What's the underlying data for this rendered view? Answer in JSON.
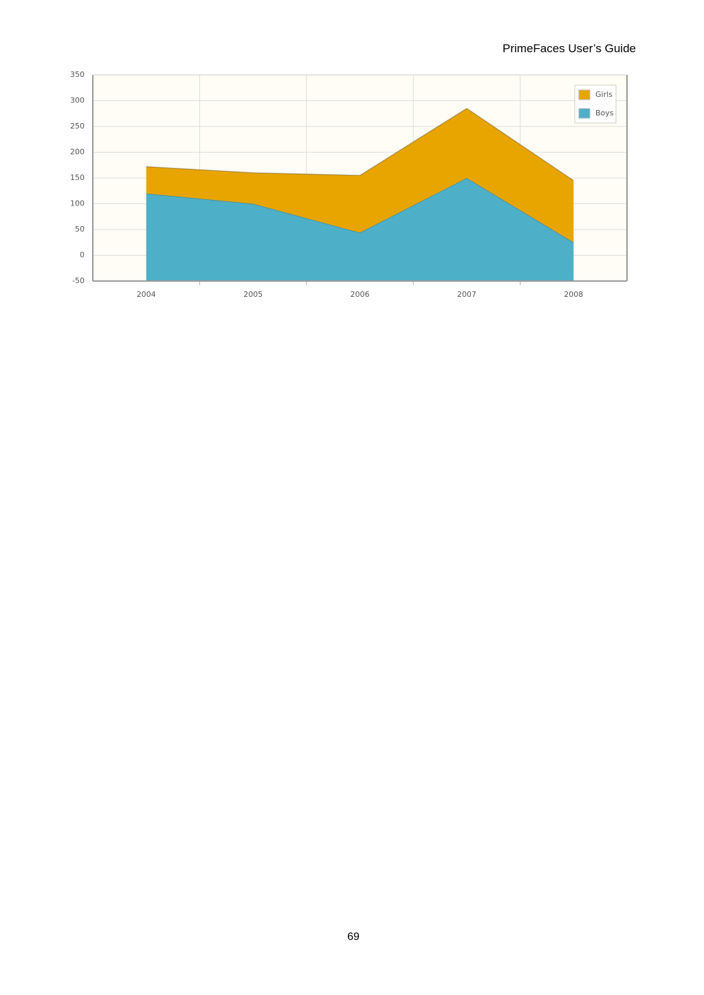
{
  "header": "PrimeFaces User’s Guide",
  "chart_data": {
    "type": "area",
    "stacked": true,
    "categories": [
      "2004",
      "2005",
      "2006",
      "2007",
      "2008"
    ],
    "series": [
      {
        "name": "Boys",
        "color": "#4eafc8",
        "values": [
          120,
          100,
          44,
          150,
          25
        ]
      },
      {
        "name": "Girls",
        "color": "#e8a500",
        "values": [
          52,
          60,
          111,
          135,
          120
        ]
      }
    ],
    "ylim": [
      -50,
      350
    ],
    "yticks": [
      -50,
      0,
      50,
      100,
      150,
      200,
      250,
      300,
      350
    ],
    "grid": true,
    "legend": "top-right"
  },
  "page_number": "69"
}
